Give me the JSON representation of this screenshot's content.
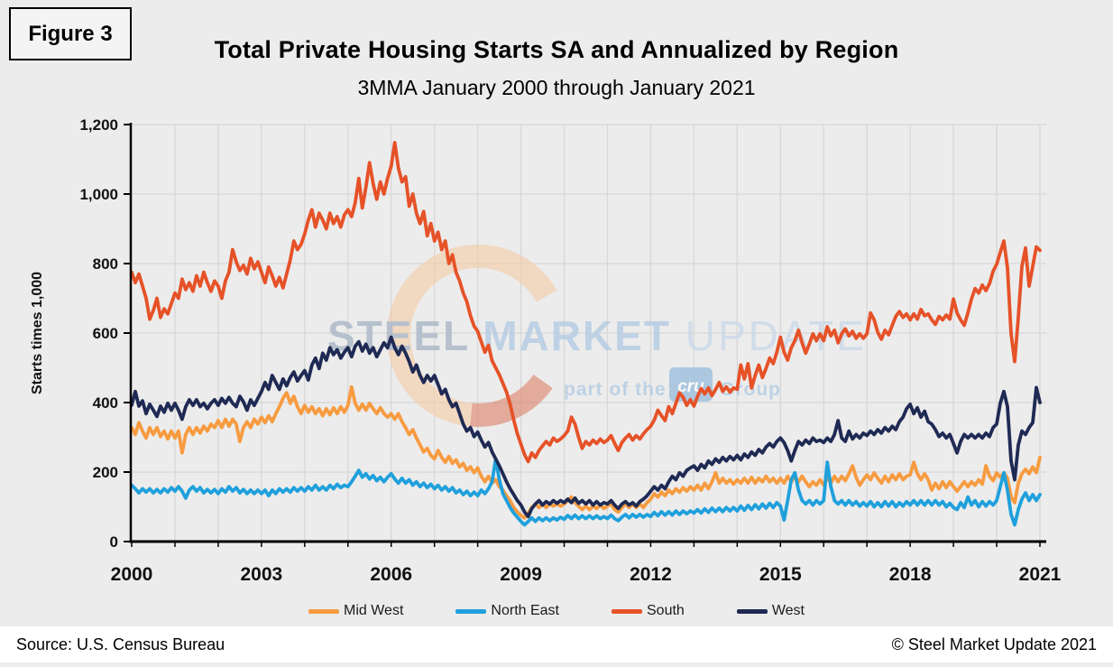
{
  "figure_label": "Figure 3",
  "title": "Total Private Housing Starts SA and Annualized by Region",
  "subtitle": "3MMA January 2000 through January 2021",
  "footer": {
    "source": "Source: U.S. Census Bureau",
    "copyright": "© Steel Market Update 2021"
  },
  "watermark": {
    "brand": [
      "STEEL",
      "MARKET",
      "UPDATE"
    ],
    "tagline_pre": "part of the",
    "tagline_logo": "cru",
    "tagline_post": "Group",
    "brand_colors": [
      "#aeb9c8",
      "#b7cde4",
      "#ccdae9"
    ],
    "tagline_color": "#b5cde4",
    "logo_box_color": "#a2c2de",
    "arc_colors": [
      "#f4cca9",
      "#dd8066"
    ]
  },
  "colors": {
    "page_bg": "#ececec",
    "footer_bg": "#ffffff",
    "gridline": "#d7d7d7",
    "axis": "#000000"
  },
  "chart_data": {
    "type": "line",
    "title": "Total Private Housing Starts SA and Annualized by Region",
    "subtitle": "3MMA January 2000 through January 2021",
    "ylabel": "Starts times 1,000",
    "ylim": [
      0,
      1200
    ],
    "y_tick_interval": 200,
    "y_tick_labels": [
      "0",
      "200",
      "400",
      "600",
      "800",
      "1,000",
      "1,200"
    ],
    "x_start_year": 2000,
    "x_end_year": 2021,
    "points_per_year": 12,
    "x_tick_years": [
      2000,
      2003,
      2006,
      2009,
      2012,
      2015,
      2018,
      2021
    ],
    "grid": "both",
    "legend_position": "bottom",
    "series": [
      {
        "name": "Mid West",
        "color": "#F79B40",
        "values": [
          328,
          308,
          342,
          318,
          298,
          328,
          308,
          328,
          302,
          318,
          295,
          318,
          298,
          318,
          255,
          308,
          328,
          308,
          328,
          312,
          332,
          318,
          338,
          328,
          348,
          328,
          352,
          332,
          352,
          338,
          288,
          328,
          345,
          328,
          352,
          338,
          358,
          342,
          362,
          345,
          368,
          388,
          412,
          428,
          398,
          418,
          388,
          368,
          392,
          372,
          388,
          368,
          382,
          362,
          382,
          365,
          385,
          368,
          388,
          372,
          392,
          445,
          398,
          378,
          395,
          378,
          398,
          382,
          368,
          385,
          368,
          358,
          368,
          352,
          368,
          345,
          328,
          308,
          322,
          298,
          278,
          258,
          268,
          248,
          238,
          262,
          242,
          228,
          245,
          225,
          235,
          215,
          225,
          205,
          215,
          198,
          212,
          188,
          172,
          188,
          168,
          178,
          158,
          148,
          132,
          118,
          98,
          85,
          75,
          68,
          82,
          98,
          108,
          98,
          108,
          98,
          108,
          102,
          108,
          102,
          108,
          118,
          128,
          112,
          102,
          92,
          102,
          92,
          102,
          95,
          105,
          95,
          102,
          108,
          92,
          85,
          98,
          108,
          98,
          108,
          98,
          108,
          98,
          112,
          122,
          138,
          128,
          142,
          132,
          148,
          138,
          152,
          142,
          155,
          145,
          158,
          148,
          162,
          148,
          168,
          152,
          172,
          198,
          168,
          182,
          168,
          178,
          165,
          178,
          168,
          182,
          168,
          185,
          168,
          182,
          172,
          188,
          172,
          182,
          168,
          182,
          168,
          188,
          172,
          188,
          172,
          188,
          172,
          158,
          172,
          162,
          178,
          162,
          182,
          168,
          188,
          172,
          188,
          175,
          195,
          218,
          185,
          162,
          178,
          192,
          178,
          198,
          182,
          168,
          188,
          172,
          192,
          178,
          195,
          178,
          188,
          192,
          228,
          195,
          178,
          195,
          178,
          148,
          168,
          152,
          172,
          155,
          172,
          158,
          145,
          158,
          172,
          158,
          172,
          162,
          178,
          165,
          218,
          188,
          175,
          198,
          185,
          198,
          182,
          128,
          112,
          168,
          195,
          208,
          195,
          215,
          198,
          242
        ]
      },
      {
        "name": "North East",
        "color": "#1FA0DC",
        "values": [
          162,
          152,
          140,
          152,
          142,
          152,
          140,
          150,
          140,
          152,
          142,
          155,
          145,
          158,
          145,
          125,
          148,
          158,
          145,
          155,
          140,
          150,
          140,
          150,
          138,
          152,
          142,
          158,
          145,
          155,
          140,
          150,
          138,
          148,
          138,
          148,
          138,
          148,
          132,
          148,
          138,
          152,
          142,
          152,
          142,
          155,
          145,
          155,
          145,
          158,
          148,
          162,
          148,
          158,
          148,
          162,
          152,
          165,
          155,
          162,
          158,
          172,
          188,
          205,
          185,
          195,
          180,
          190,
          175,
          185,
          172,
          185,
          195,
          180,
          168,
          182,
          168,
          178,
          162,
          172,
          158,
          168,
          155,
          165,
          152,
          162,
          148,
          158,
          145,
          155,
          140,
          148,
          135,
          145,
          132,
          142,
          132,
          148,
          138,
          152,
          172,
          238,
          178,
          138,
          118,
          98,
          82,
          70,
          58,
          48,
          58,
          68,
          58,
          68,
          60,
          68,
          60,
          68,
          62,
          70,
          64,
          75,
          66,
          76,
          66,
          74,
          66,
          74,
          66,
          74,
          66,
          72,
          66,
          76,
          66,
          60,
          70,
          78,
          68,
          78,
          70,
          78,
          70,
          78,
          72,
          84,
          74,
          86,
          76,
          86,
          76,
          88,
          78,
          88,
          80,
          88,
          82,
          92,
          82,
          94,
          84,
          96,
          86,
          96,
          86,
          98,
          88,
          98,
          88,
          102,
          90,
          104,
          92,
          106,
          94,
          108,
          96,
          110,
          98,
          112,
          102,
          62,
          118,
          178,
          198,
          148,
          118,
          108,
          118,
          105,
          118,
          108,
          118,
          228,
          158,
          118,
          108,
          118,
          105,
          118,
          105,
          115,
          102,
          112,
          102,
          115,
          100,
          112,
          100,
          115,
          102,
          115,
          100,
          112,
          102,
          115,
          105,
          118,
          105,
          118,
          105,
          118,
          105,
          118,
          105,
          115,
          100,
          110,
          98,
          92,
          112,
          98,
          128,
          105,
          118,
          100,
          115,
          102,
          115,
          105,
          118,
          158,
          198,
          148,
          78,
          48,
          92,
          122,
          140,
          118,
          135,
          118,
          135
        ]
      },
      {
        "name": "South",
        "color": "#E65228",
        "values": [
          775,
          745,
          770,
          735,
          700,
          640,
          665,
          700,
          645,
          670,
          655,
          685,
          715,
          700,
          755,
          725,
          745,
          720,
          765,
          735,
          775,
          745,
          720,
          750,
          735,
          700,
          750,
          775,
          840,
          805,
          780,
          795,
          770,
          815,
          785,
          805,
          775,
          745,
          790,
          765,
          735,
          760,
          730,
          770,
          810,
          865,
          840,
          855,
          885,
          925,
          955,
          905,
          945,
          925,
          900,
          945,
          915,
          935,
          905,
          940,
          955,
          935,
          975,
          1045,
          960,
          1020,
          1090,
          1030,
          985,
          1035,
          1000,
          1045,
          1080,
          1148,
          1075,
          1035,
          1050,
          965,
          1000,
          945,
          915,
          950,
          880,
          915,
          865,
          890,
          840,
          865,
          800,
          825,
          775,
          750,
          715,
          690,
          650,
          620,
          605,
          575,
          545,
          565,
          520,
          500,
          480,
          455,
          430,
          395,
          350,
          310,
          280,
          250,
          230,
          255,
          242,
          262,
          275,
          288,
          278,
          298,
          288,
          295,
          305,
          318,
          358,
          338,
          300,
          268,
          288,
          278,
          292,
          282,
          295,
          285,
          292,
          305,
          282,
          262,
          285,
          298,
          308,
          292,
          305,
          295,
          310,
          322,
          332,
          350,
          378,
          362,
          348,
          388,
          368,
          398,
          428,
          415,
          392,
          408,
          390,
          418,
          440,
          425,
          442,
          420,
          438,
          458,
          432,
          445,
          430,
          442,
          438,
          508,
          468,
          512,
          442,
          478,
          508,
          472,
          498,
          528,
          512,
          545,
          588,
          545,
          522,
          558,
          578,
          608,
          572,
          542,
          568,
          598,
          578,
          598,
          578,
          618,
          592,
          608,
          572,
          598,
          612,
          592,
          605,
          585,
          598,
          585,
          598,
          658,
          638,
          602,
          582,
          608,
          595,
          622,
          648,
          662,
          645,
          655,
          638,
          655,
          640,
          668,
          650,
          655,
          638,
          625,
          648,
          638,
          652,
          640,
          698,
          658,
          638,
          622,
          658,
          698,
          728,
          715,
          738,
          722,
          742,
          778,
          798,
          832,
          865,
          788,
          598,
          518,
          645,
          792,
          845,
          735,
          792,
          848,
          838
        ]
      },
      {
        "name": "West",
        "color": "#1F2A54",
        "values": [
          393,
          432,
          390,
          405,
          368,
          395,
          378,
          360,
          390,
          372,
          398,
          378,
          398,
          378,
          352,
          388,
          408,
          392,
          408,
          388,
          398,
          382,
          398,
          408,
          392,
          412,
          398,
          415,
          398,
          388,
          418,
          402,
          378,
          408,
          392,
          412,
          432,
          458,
          438,
          478,
          458,
          438,
          468,
          448,
          472,
          488,
          462,
          478,
          492,
          465,
          508,
          528,
          498,
          542,
          522,
          558,
          538,
          552,
          528,
          545,
          558,
          532,
          562,
          575,
          548,
          568,
          542,
          558,
          532,
          552,
          572,
          558,
          588,
          558,
          538,
          562,
          542,
          518,
          488,
          508,
          478,
          458,
          478,
          462,
          478,
          452,
          425,
          438,
          408,
          388,
          398,
          368,
          338,
          318,
          328,
          302,
          315,
          292,
          272,
          285,
          258,
          238,
          218,
          195,
          172,
          152,
          135,
          118,
          105,
          85,
          72,
          95,
          108,
          118,
          105,
          115,
          108,
          118,
          110,
          118,
          112,
          122,
          112,
          125,
          110,
          118,
          108,
          118,
          105,
          115,
          105,
          112,
          108,
          118,
          105,
          95,
          108,
          115,
          105,
          112,
          102,
          115,
          122,
          132,
          145,
          158,
          148,
          162,
          152,
          172,
          188,
          178,
          198,
          188,
          205,
          212,
          218,
          205,
          222,
          212,
          232,
          222,
          238,
          228,
          242,
          232,
          245,
          235,
          248,
          235,
          252,
          242,
          258,
          248,
          265,
          255,
          272,
          282,
          272,
          288,
          298,
          285,
          262,
          232,
          262,
          288,
          278,
          292,
          282,
          298,
          288,
          292,
          285,
          298,
          288,
          308,
          348,
          298,
          288,
          318,
          295,
          308,
          298,
          312,
          305,
          318,
          308,
          322,
          312,
          328,
          318,
          332,
          322,
          345,
          358,
          382,
          395,
          368,
          385,
          358,
          375,
          345,
          338,
          322,
          302,
          312,
          298,
          308,
          282,
          255,
          288,
          308,
          298,
          308,
          298,
          308,
          298,
          312,
          302,
          328,
          338,
          398,
          432,
          388,
          232,
          178,
          278,
          318,
          308,
          328,
          342,
          443,
          400
        ]
      }
    ]
  }
}
